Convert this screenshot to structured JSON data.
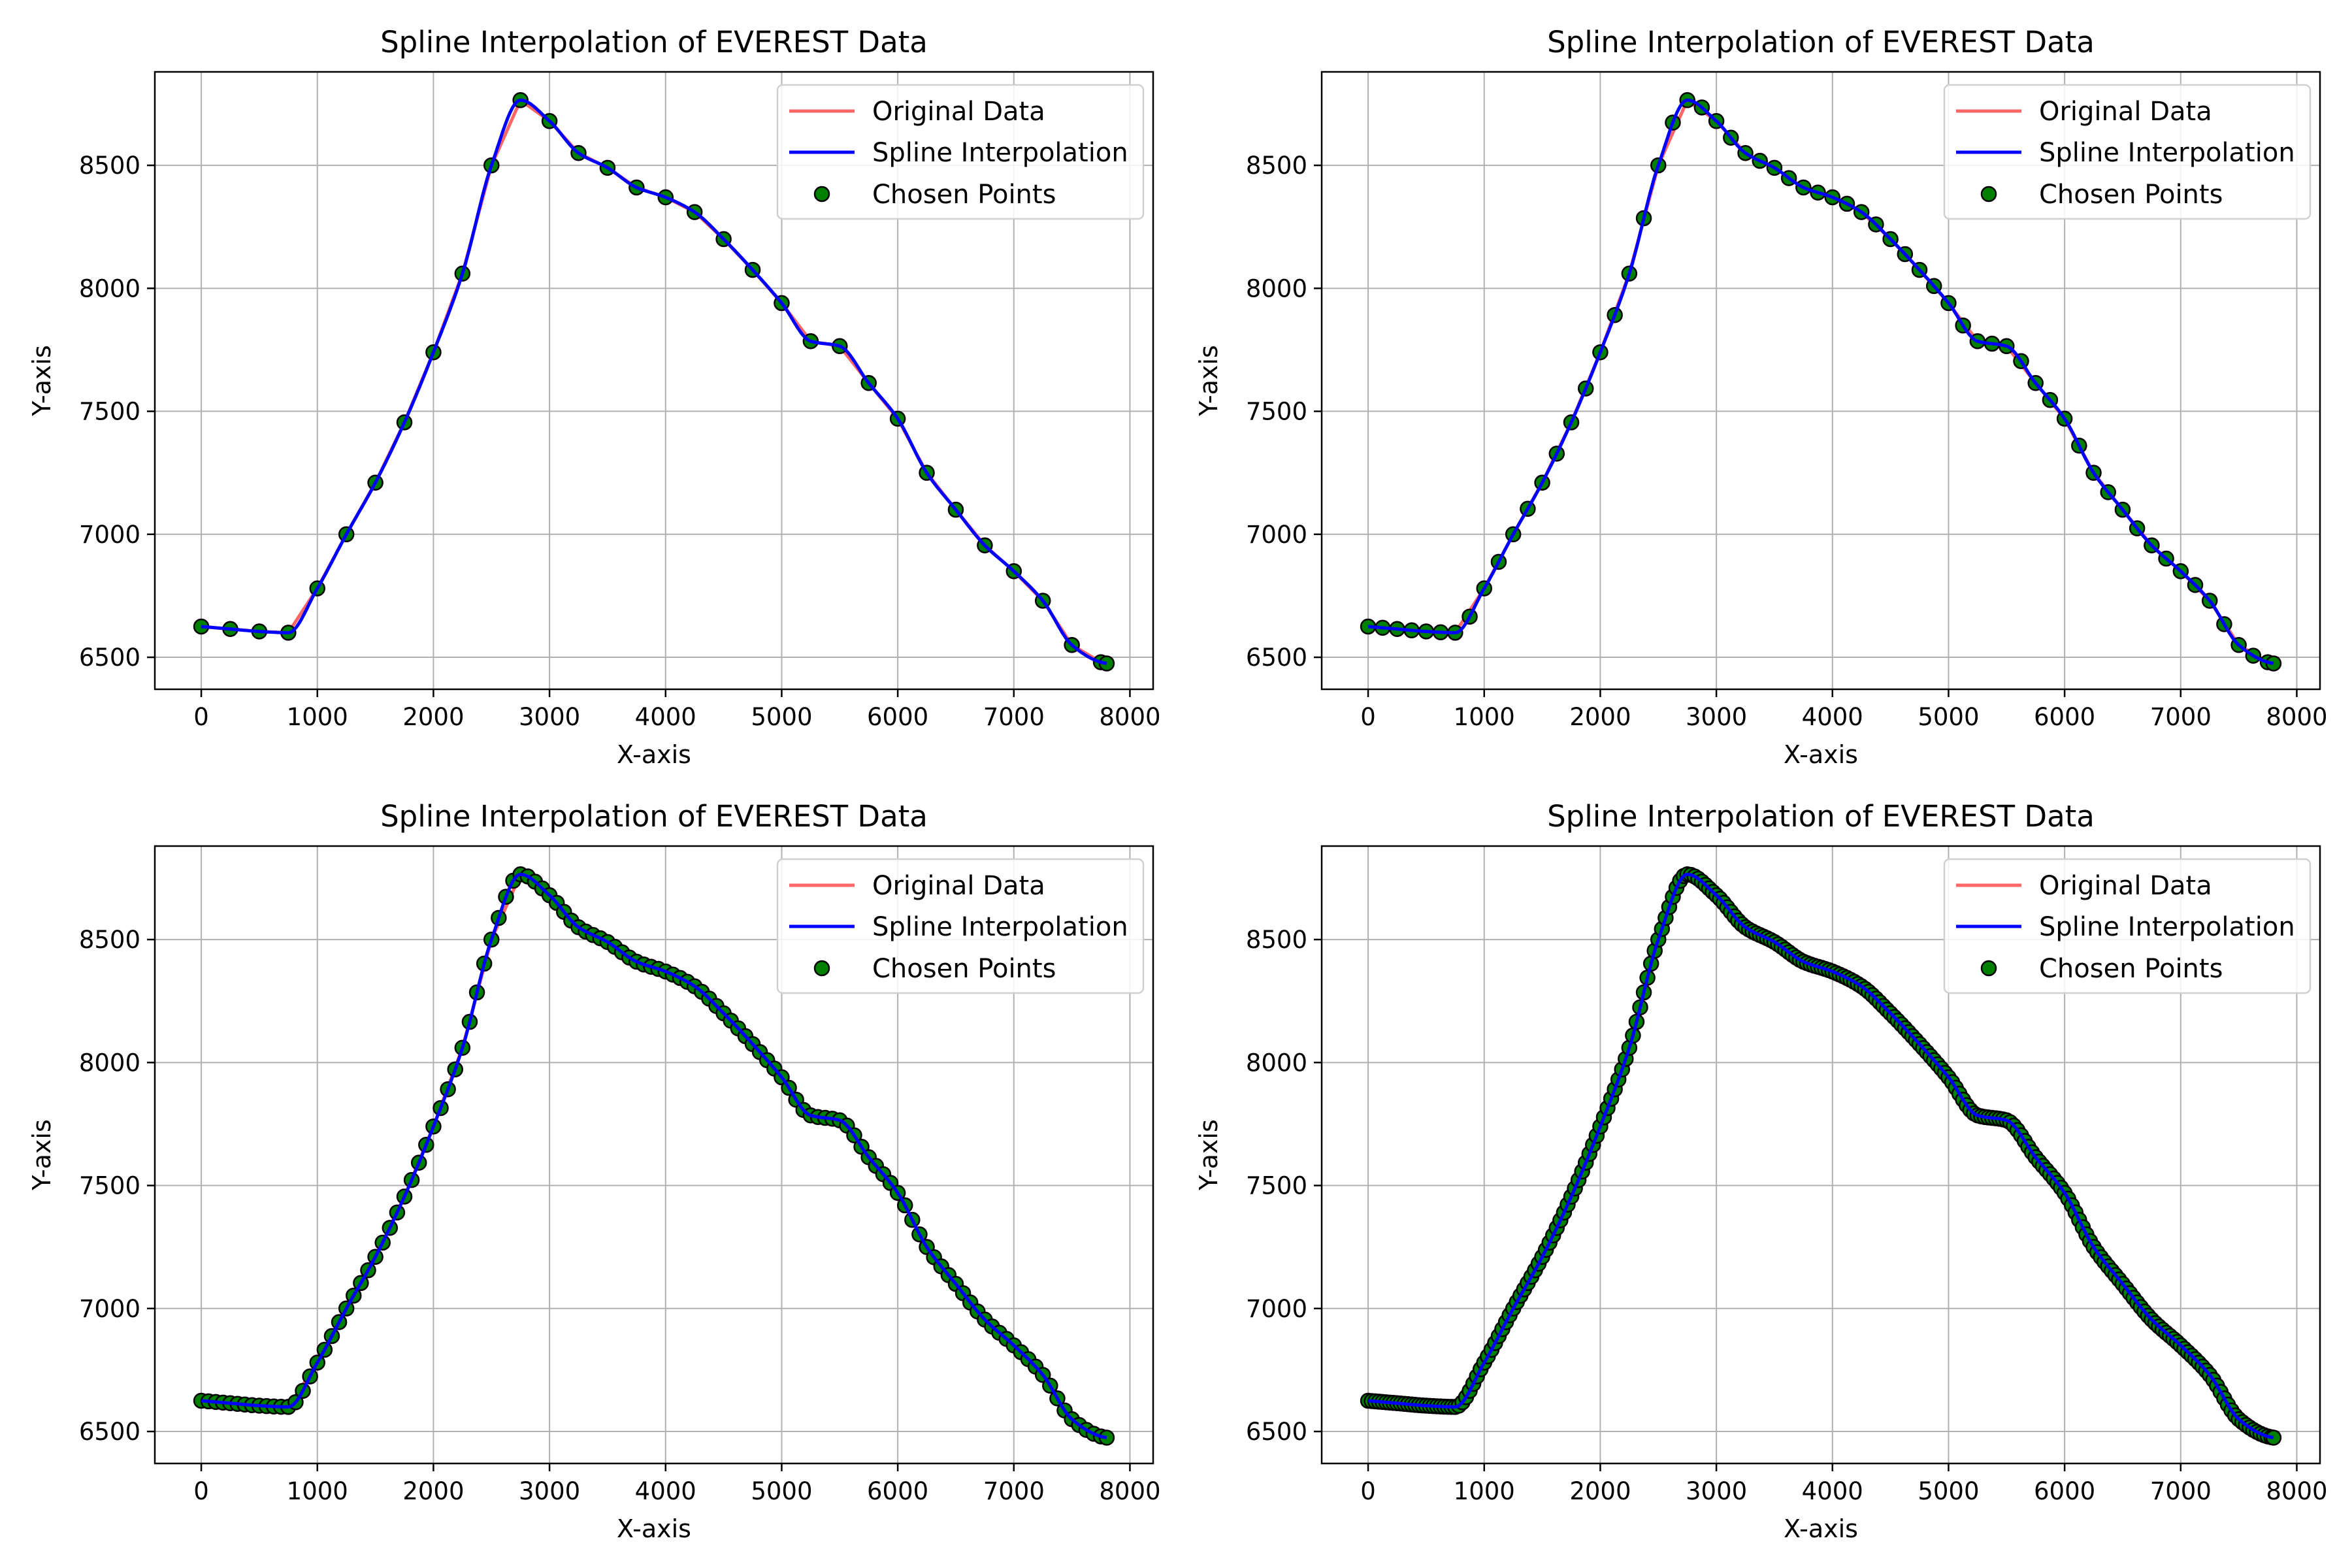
{
  "colors": {
    "original": "#ff6666",
    "spline": "#0000ff",
    "marker_fill": "#008000",
    "marker_edge": "#000000",
    "grid": "#b0b0b0"
  },
  "legend": {
    "original": "Original Data",
    "spline": "Spline Interpolation",
    "chosen": "Chosen Points"
  },
  "profile": {
    "x": [
      0,
      250,
      500,
      750,
      1000,
      1250,
      1500,
      1750,
      2000,
      2250,
      2500,
      2750,
      3000,
      3250,
      3500,
      3750,
      4000,
      4250,
      4500,
      4750,
      5000,
      5250,
      5500,
      5750,
      6000,
      6250,
      6500,
      6750,
      7000,
      7250,
      7500,
      7750,
      7800
    ],
    "y": [
      6625,
      6615,
      6605,
      6600,
      6780,
      7000,
      7210,
      7455,
      7740,
      8060,
      8500,
      8765,
      8680,
      8550,
      8490,
      8410,
      8370,
      8310,
      8200,
      8075,
      7940,
      7785,
      7765,
      7615,
      7470,
      7250,
      7100,
      6955,
      6850,
      6730,
      6550,
      6480,
      6475
    ]
  },
  "chart_data": [
    {
      "type": "line",
      "title": "Spline Interpolation of EVEREST Data",
      "xlabel": "X-axis",
      "ylabel": "Y-axis",
      "xlim": [
        -400,
        8200
      ],
      "ylim": [
        6370,
        8880
      ],
      "xticks": [
        0,
        1000,
        2000,
        3000,
        4000,
        5000,
        6000,
        7000,
        8000
      ],
      "yticks": [
        6500,
        7000,
        7500,
        8000,
        8500
      ],
      "grid": true,
      "legend": "top-right",
      "point_spacing": 250,
      "series": [
        {
          "name": "Original Data",
          "kind": "line"
        },
        {
          "name": "Spline Interpolation",
          "kind": "line"
        },
        {
          "name": "Chosen Points",
          "kind": "scatter"
        }
      ]
    },
    {
      "type": "line",
      "title": "Spline Interpolation of EVEREST Data",
      "xlabel": "X-axis",
      "ylabel": "Y-axis",
      "xlim": [
        -400,
        8200
      ],
      "ylim": [
        6370,
        8880
      ],
      "xticks": [
        0,
        1000,
        2000,
        3000,
        4000,
        5000,
        6000,
        7000,
        8000
      ],
      "yticks": [
        6500,
        7000,
        7500,
        8000,
        8500
      ],
      "grid": true,
      "legend": "top-right",
      "point_spacing": 125,
      "series": [
        {
          "name": "Original Data",
          "kind": "line"
        },
        {
          "name": "Spline Interpolation",
          "kind": "line"
        },
        {
          "name": "Chosen Points",
          "kind": "scatter"
        }
      ]
    },
    {
      "type": "line",
      "title": "Spline Interpolation of EVEREST Data",
      "xlabel": "X-axis",
      "ylabel": "Y-axis",
      "xlim": [
        -400,
        8200
      ],
      "ylim": [
        6370,
        8880
      ],
      "xticks": [
        0,
        1000,
        2000,
        3000,
        4000,
        5000,
        6000,
        7000,
        8000
      ],
      "yticks": [
        6500,
        7000,
        7500,
        8000,
        8500
      ],
      "grid": true,
      "legend": "top-right",
      "point_spacing": 62.5,
      "series": [
        {
          "name": "Original Data",
          "kind": "line"
        },
        {
          "name": "Spline Interpolation",
          "kind": "line"
        },
        {
          "name": "Chosen Points",
          "kind": "scatter"
        }
      ]
    },
    {
      "type": "line",
      "title": "Spline Interpolation of EVEREST Data",
      "xlabel": "X-axis",
      "ylabel": "Y-axis",
      "xlim": [
        -400,
        8200
      ],
      "ylim": [
        6370,
        8880
      ],
      "xticks": [
        0,
        1000,
        2000,
        3000,
        4000,
        5000,
        6000,
        7000,
        8000
      ],
      "yticks": [
        6500,
        7000,
        7500,
        8000,
        8500
      ],
      "grid": true,
      "legend": "top-right",
      "point_spacing": 31.25,
      "series": [
        {
          "name": "Original Data",
          "kind": "line"
        },
        {
          "name": "Spline Interpolation",
          "kind": "line"
        },
        {
          "name": "Chosen Points",
          "kind": "scatter"
        }
      ]
    }
  ]
}
